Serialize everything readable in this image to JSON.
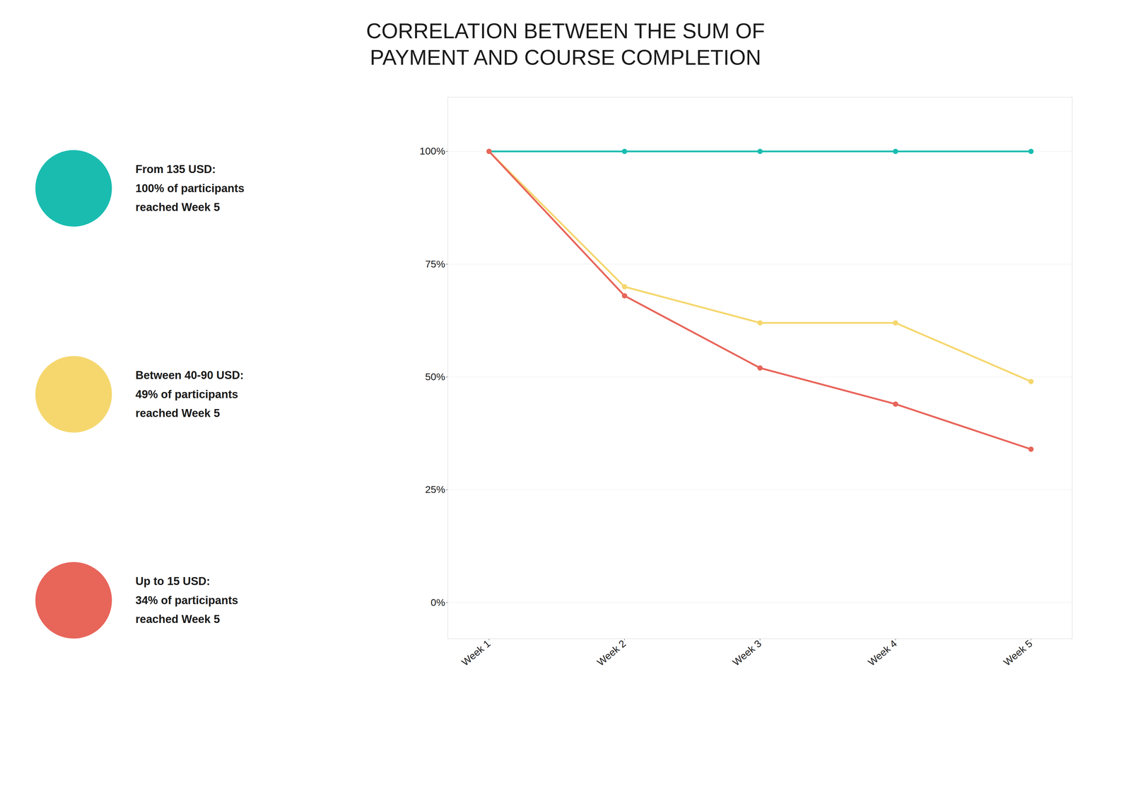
{
  "chart_data": {
    "type": "line",
    "title": "CORRELATION BETWEEN THE SUM OF\nPAYMENT AND COURSE COMPLETION",
    "categories": [
      "Week 1",
      "Week 2",
      "Week 3",
      "Week 4",
      "Week 5"
    ],
    "series": [
      {
        "name": "From 135 USD:\n100% of participants\nreached Week 5",
        "color": "#1ABCB0",
        "values": [
          100,
          100,
          100,
          100,
          100
        ]
      },
      {
        "name": "Between 40-90 USD:\n49% of participants\nreached Week 5",
        "color": "#F5D76E",
        "values": [
          100,
          70,
          62,
          62,
          49
        ]
      },
      {
        "name": "Up to 15 USD:\n34% of participants\nreached Week 5",
        "color": "#E8655A",
        "values": [
          100,
          68,
          52,
          44,
          34
        ]
      }
    ],
    "ylim": [
      -8,
      112
    ],
    "yticks": [
      {
        "value": 0,
        "label": "0%"
      },
      {
        "value": 25,
        "label": "25%"
      },
      {
        "value": 50,
        "label": "50%"
      },
      {
        "value": 75,
        "label": "75%"
      },
      {
        "value": 100,
        "label": "100%"
      }
    ],
    "grid": true,
    "legend": "left",
    "marker": "circle"
  }
}
